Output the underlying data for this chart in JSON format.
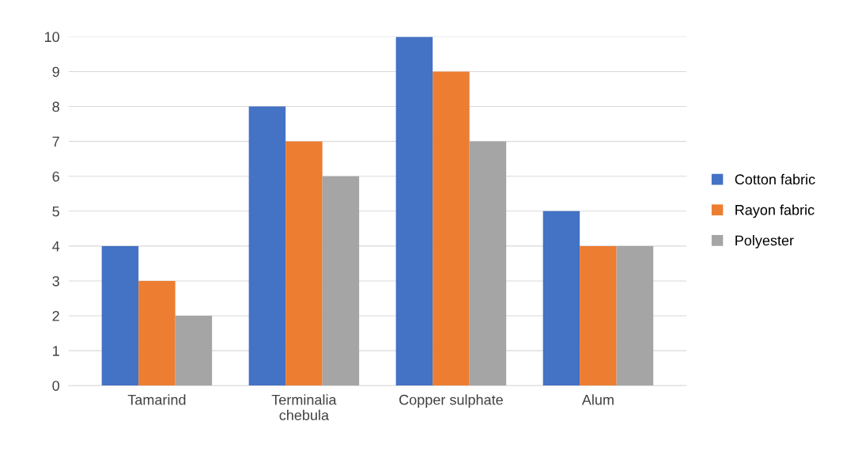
{
  "chart_data": {
    "type": "bar",
    "categories": [
      "Tamarind",
      "Terminalia\nchebula",
      "Copper sulphate",
      "Alum"
    ],
    "series": [
      {
        "name": "Cotton fabric",
        "color": "#4472c4",
        "values": [
          4,
          8,
          10,
          5
        ]
      },
      {
        "name": "Rayon fabric",
        "color": "#ed7d31",
        "values": [
          3,
          7,
          9,
          4
        ]
      },
      {
        "name": "Polyester",
        "color": "#a5a5a5",
        "values": [
          2,
          6,
          7,
          4
        ]
      }
    ],
    "ylim": [
      0,
      10
    ],
    "yticks": [
      0,
      1,
      2,
      3,
      4,
      5,
      6,
      7,
      8,
      9,
      10
    ],
    "grid": "y",
    "legend": "right"
  }
}
